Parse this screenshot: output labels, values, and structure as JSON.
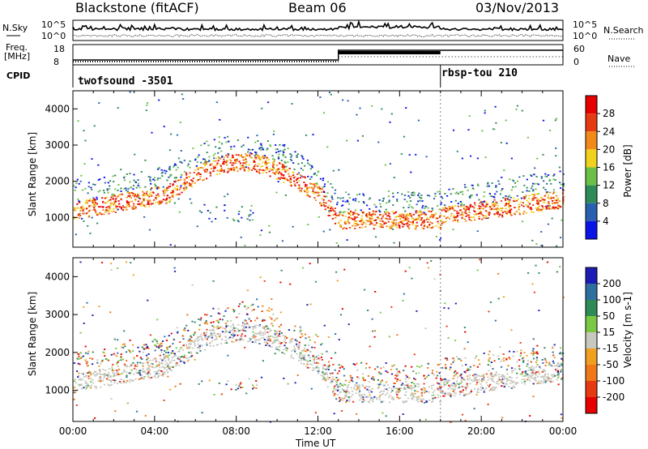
{
  "header": {
    "station": "Blackstone (fitACF)",
    "beam": "Beam 06",
    "date": "03/Nov/2013"
  },
  "summary": {
    "left_labels": [
      "N.Sky",
      "Freq.",
      "[MHz]",
      "CPID"
    ],
    "right_labels": [
      "N.Search",
      "Nave"
    ],
    "sky_ticks": [
      "10^5",
      "10^0"
    ],
    "search_ticks": [
      "10^5",
      "10^0"
    ],
    "freq_ticks": [
      "18",
      "8"
    ],
    "nave_ticks": [
      "60",
      "0"
    ],
    "cpid_segments": [
      {
        "label": "twofsound -3501",
        "start": "00:00",
        "end": "18:00"
      },
      {
        "label": "rbsp-tou 210",
        "start": "18:00",
        "end": "24:00"
      }
    ]
  },
  "chart_data": [
    {
      "type": "heatmap",
      "name": "power",
      "ylabel": "Slant Range [km]",
      "xlabel": "Time UT",
      "x_ticks": [
        "00:00",
        "04:00",
        "08:00",
        "12:00",
        "16:00",
        "20:00",
        "00:00"
      ],
      "y_ticks": [
        "1000",
        "2000",
        "3000",
        "4000"
      ],
      "ylim": [
        180,
        4500
      ],
      "xlim_hours": [
        0,
        24
      ],
      "colorbar": {
        "label": "Power [dB]",
        "ticks": [
          "4",
          "8",
          "12",
          "16",
          "20",
          "24",
          "28"
        ],
        "colors": [
          "#0a14e6",
          "#2a5fb0",
          "#2e8b57",
          "#6cc04a",
          "#f0d21e",
          "#f08a18",
          "#e63a12",
          "#e60000"
        ]
      }
    },
    {
      "type": "heatmap",
      "name": "velocity",
      "ylabel": "Slant Range [km]",
      "xlabel": "Time UT",
      "x_ticks": [
        "00:00",
        "04:00",
        "08:00",
        "12:00",
        "16:00",
        "20:00",
        "00:00"
      ],
      "y_ticks": [
        "1000",
        "2000",
        "3000",
        "4000"
      ],
      "ylim": [
        180,
        4500
      ],
      "xlim_hours": [
        0,
        24
      ],
      "colorbar": {
        "label": "Velocity [m s-1]",
        "ticks": [
          "200",
          "100",
          "50",
          "15",
          "-15",
          "-50",
          "-100",
          "-200"
        ],
        "colors": [
          "#1c1cb4",
          "#2e6fa0",
          "#2e8b57",
          "#7ac943",
          "#c8c8c0",
          "#f0a020",
          "#f07818",
          "#e63a12",
          "#e60000"
        ]
      }
    }
  ],
  "xaxis_title": "Time UT"
}
